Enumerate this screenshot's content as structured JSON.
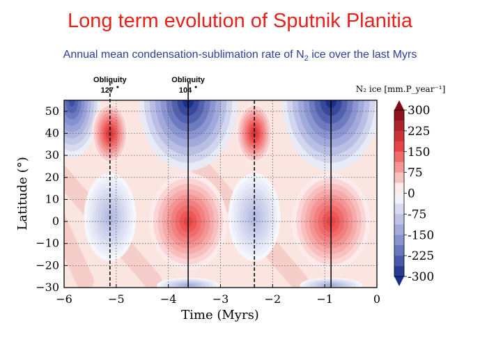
{
  "slide": {
    "title": "Long term evolution of Sputnik Planitia",
    "subtitle_before": "Annual mean condensation-sublimation rate of N",
    "subtitle_sub": "2",
    "subtitle_after": " ice over the last Myrs"
  },
  "chart_data": {
    "type": "heatmap",
    "xlabel": "Time (Myrs)",
    "ylabel": "Latitude (°)",
    "xlim": [
      -6,
      0
    ],
    "ylim": [
      -30,
      55
    ],
    "x_ticks": [
      -6,
      -5,
      -4,
      -3,
      -2,
      -1,
      0
    ],
    "y_ticks": [
      -30,
      -20,
      -10,
      0,
      10,
      20,
      30,
      40,
      50
    ],
    "grid": "dotted",
    "colorbar": {
      "label": "N₂ ice [mm.P_year⁻¹]",
      "ticks": [
        300,
        225,
        150,
        75,
        0,
        -75,
        -150,
        -225,
        -300
      ],
      "range": [
        -300,
        300
      ],
      "colors": {
        "neg_max": "#1a2f8c",
        "neutral": "#ffffff",
        "pos_max": "#7e0a14"
      }
    },
    "obliquity_lines": [
      {
        "x": -5.12,
        "label": "Obliquity",
        "value": "127",
        "style": "dashed"
      },
      {
        "x": -3.62,
        "label": "Obliquity",
        "value": "104",
        "style": "solid"
      },
      {
        "x": -2.35,
        "style": "dashed"
      },
      {
        "x": -0.88,
        "style": "solid"
      }
    ],
    "features": [
      {
        "kind": "sublimation",
        "x": -3.62,
        "y": 55,
        "rx": 0.95,
        "ry": 32,
        "peak": -300
      },
      {
        "kind": "sublimation",
        "x": -0.88,
        "y": 55,
        "rx": 0.95,
        "ry": 32,
        "peak": -300
      },
      {
        "kind": "sublimation",
        "x": -5.85,
        "y": 55,
        "rx": 0.55,
        "ry": 26,
        "peak": -260
      },
      {
        "kind": "condensation",
        "x": -5.12,
        "y": 40,
        "rx": 0.35,
        "ry": 14,
        "peak": 200
      },
      {
        "kind": "condensation",
        "x": -2.35,
        "y": 40,
        "rx": 0.35,
        "ry": 14,
        "peak": 200
      },
      {
        "kind": "condensation",
        "x": -3.62,
        "y": 0,
        "rx": 0.75,
        "ry": 22,
        "peak": 170
      },
      {
        "kind": "condensation",
        "x": -0.88,
        "y": 0,
        "rx": 0.75,
        "ry": 22,
        "peak": 170
      },
      {
        "kind": "sublimation",
        "x": -5.12,
        "y": 2,
        "rx": 0.5,
        "ry": 20,
        "peak": -110
      },
      {
        "kind": "sublimation",
        "x": -2.35,
        "y": 2,
        "rx": 0.5,
        "ry": 20,
        "peak": -110
      },
      {
        "kind": "sublimation",
        "x": -3.62,
        "y": -29,
        "rx": 0.6,
        "ry": 3.5,
        "peak": -130
      },
      {
        "kind": "sublimation",
        "x": -0.88,
        "y": -29,
        "rx": 0.6,
        "ry": 3.5,
        "peak": -130
      }
    ]
  }
}
